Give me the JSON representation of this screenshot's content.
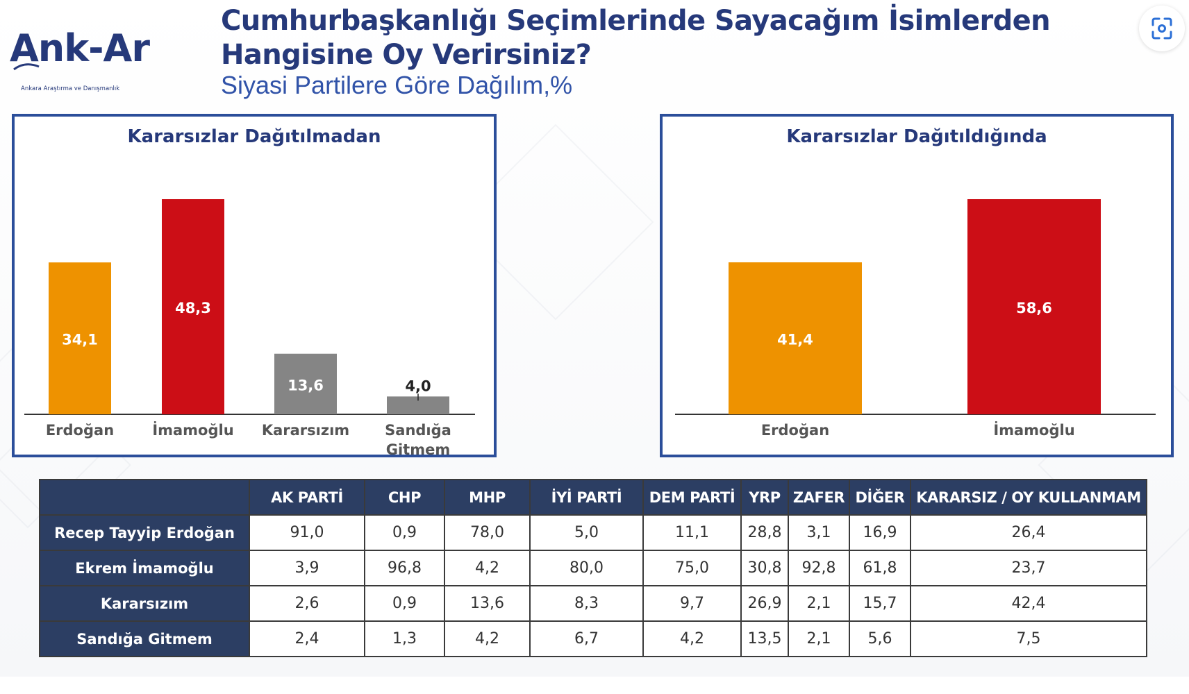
{
  "header": {
    "logo_text": "Ank-Ar",
    "logo_tagline": "Ankara Araştırma ve Danışmanlık",
    "title_line1": "Cumhurbaşkanlığı Seçimlerinde Sayacağım İsimlerden",
    "title_line2": "Hangisine Oy Verirsiniz?",
    "subtitle": "Siyasi Partilere Göre Dağılım,%"
  },
  "toolbar": {
    "expand_icon": "screen-capture-icon"
  },
  "colors": {
    "brand": "#26397a",
    "panel_border": "#2b4e9a",
    "erdogan": "#ee9200",
    "imamoglu": "#cc0e16",
    "gray": "#858585",
    "table_header": "#2c3e63"
  },
  "chart_data": [
    {
      "type": "bar",
      "title": "Kararsızlar Dağıtılmadan",
      "categories": [
        "Erdoğan",
        "İmamoğlu",
        "Kararsızım",
        "Sandığa Gitmem"
      ],
      "values": [
        34.1,
        48.3,
        13.6,
        4.0
      ],
      "value_labels": [
        "34,1",
        "48,3",
        "13,6",
        "4,0"
      ],
      "colors": [
        "#ee9200",
        "#cc0e16",
        "#858585",
        "#858585"
      ],
      "ylim": [
        0,
        48.3
      ],
      "grid": false,
      "xlabel": "",
      "ylabel": ""
    },
    {
      "type": "bar",
      "title": "Kararsızlar Dağıtıldığında",
      "categories": [
        "Erdoğan",
        "İmamoğlu"
      ],
      "values": [
        41.4,
        58.6
      ],
      "value_labels": [
        "41,4",
        "58,6"
      ],
      "colors": [
        "#ee9200",
        "#cc0e16"
      ],
      "ylim": [
        0,
        58.6
      ],
      "grid": false,
      "xlabel": "",
      "ylabel": ""
    },
    {
      "type": "table",
      "columns": [
        "AK PARTİ",
        "CHP",
        "MHP",
        "İYİ PARTİ",
        "DEM PARTİ",
        "YRP",
        "ZAFER",
        "DİĞER",
        "KARARSIZ / OY KULLANMAM"
      ],
      "rows": [
        {
          "label": "Recep Tayyip Erdoğan",
          "values": [
            "91,0",
            "0,9",
            "78,0",
            "5,0",
            "11,1",
            "28,8",
            "3,1",
            "16,9",
            "26,4"
          ]
        },
        {
          "label": "Ekrem İmamoğlu",
          "values": [
            "3,9",
            "96,8",
            "4,2",
            "80,0",
            "75,0",
            "30,8",
            "92,8",
            "61,8",
            "23,7"
          ]
        },
        {
          "label": "Kararsızım",
          "values": [
            "2,6",
            "0,9",
            "13,6",
            "8,3",
            "9,7",
            "26,9",
            "2,1",
            "15,7",
            "42,4"
          ]
        },
        {
          "label": "Sandığa Gitmem",
          "values": [
            "2,4",
            "1,3",
            "4,2",
            "6,7",
            "4,2",
            "13,5",
            "2,1",
            "5,6",
            "7,5"
          ]
        }
      ]
    }
  ]
}
